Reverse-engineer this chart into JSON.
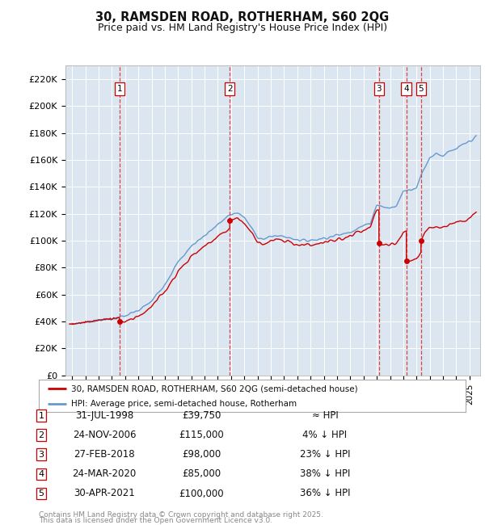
{
  "title": "30, RAMSDEN ROAD, ROTHERHAM, S60 2QG",
  "subtitle": "Price paid vs. HM Land Registry's House Price Index (HPI)",
  "footer_line1": "Contains HM Land Registry data © Crown copyright and database right 2025.",
  "footer_line2": "This data is licensed under the Open Government Licence v3.0.",
  "legend_house": "30, RAMSDEN ROAD, ROTHERHAM, S60 2QG (semi-detached house)",
  "legend_hpi": "HPI: Average price, semi-detached house, Rotherham",
  "purchases": [
    {
      "id": 1,
      "date_num": 1998.58,
      "price": 39750,
      "label": "1",
      "date_str": "31-JUL-1998",
      "note": "≈ HPI"
    },
    {
      "id": 2,
      "date_num": 2006.9,
      "price": 115000,
      "label": "2",
      "date_str": "24-NOV-2006",
      "note": "4% ↓ HPI"
    },
    {
      "id": 3,
      "date_num": 2018.16,
      "price": 98000,
      "label": "3",
      "date_str": "27-FEB-2018",
      "note": "23% ↓ HPI"
    },
    {
      "id": 4,
      "date_num": 2020.23,
      "price": 85000,
      "label": "4",
      "date_str": "24-MAR-2020",
      "note": "38% ↓ HPI"
    },
    {
      "id": 5,
      "date_num": 2021.33,
      "price": 100000,
      "label": "5",
      "date_str": "30-APR-2021",
      "note": "36% ↓ HPI"
    }
  ],
  "ylim": [
    0,
    230000
  ],
  "yticks": [
    0,
    20000,
    40000,
    60000,
    80000,
    100000,
    120000,
    140000,
    160000,
    180000,
    200000,
    220000
  ],
  "ytick_labels": [
    "£0",
    "£20K",
    "£40K",
    "£60K",
    "£80K",
    "£100K",
    "£120K",
    "£140K",
    "£160K",
    "£180K",
    "£200K",
    "£220K"
  ],
  "xlim_start": 1994.5,
  "xlim_end": 2025.8,
  "house_color": "#cc0000",
  "hpi_color": "#6699cc",
  "background_color": "#dce6f1",
  "plot_bg_color": "#dce6f1",
  "grid_color": "#ffffff",
  "dashed_color": "#cc3333",
  "hpi_keypoints": [
    [
      1995.0,
      38000
    ],
    [
      1996.0,
      39500
    ],
    [
      1997.0,
      41000
    ],
    [
      1998.0,
      42000
    ],
    [
      1999.0,
      44000
    ],
    [
      2000.0,
      48000
    ],
    [
      2001.0,
      55000
    ],
    [
      2002.0,
      68000
    ],
    [
      2003.0,
      84000
    ],
    [
      2004.0,
      96000
    ],
    [
      2005.0,
      104000
    ],
    [
      2006.0,
      112000
    ],
    [
      2006.9,
      119000
    ],
    [
      2007.5,
      121000
    ],
    [
      2008.0,
      117000
    ],
    [
      2008.5,
      110000
    ],
    [
      2009.0,
      103000
    ],
    [
      2009.5,
      101000
    ],
    [
      2010.0,
      103000
    ],
    [
      2010.5,
      104000
    ],
    [
      2011.0,
      103000
    ],
    [
      2011.5,
      102000
    ],
    [
      2012.0,
      101000
    ],
    [
      2012.5,
      100000
    ],
    [
      2013.0,
      100500
    ],
    [
      2013.5,
      101000
    ],
    [
      2014.0,
      102000
    ],
    [
      2014.5,
      103000
    ],
    [
      2015.0,
      104000
    ],
    [
      2015.5,
      105000
    ],
    [
      2016.0,
      107000
    ],
    [
      2016.5,
      109000
    ],
    [
      2017.0,
      111000
    ],
    [
      2017.5,
      113000
    ],
    [
      2018.0,
      127000
    ],
    [
      2018.5,
      125000
    ],
    [
      2019.0,
      124000
    ],
    [
      2019.5,
      126000
    ],
    [
      2020.0,
      137000
    ],
    [
      2020.5,
      138000
    ],
    [
      2021.0,
      140000
    ],
    [
      2021.5,
      152000
    ],
    [
      2022.0,
      162000
    ],
    [
      2022.5,
      165000
    ],
    [
      2023.0,
      163000
    ],
    [
      2023.5,
      166000
    ],
    [
      2024.0,
      168000
    ],
    [
      2024.5,
      171000
    ],
    [
      2025.0,
      174000
    ],
    [
      2025.5,
      177000
    ]
  ]
}
